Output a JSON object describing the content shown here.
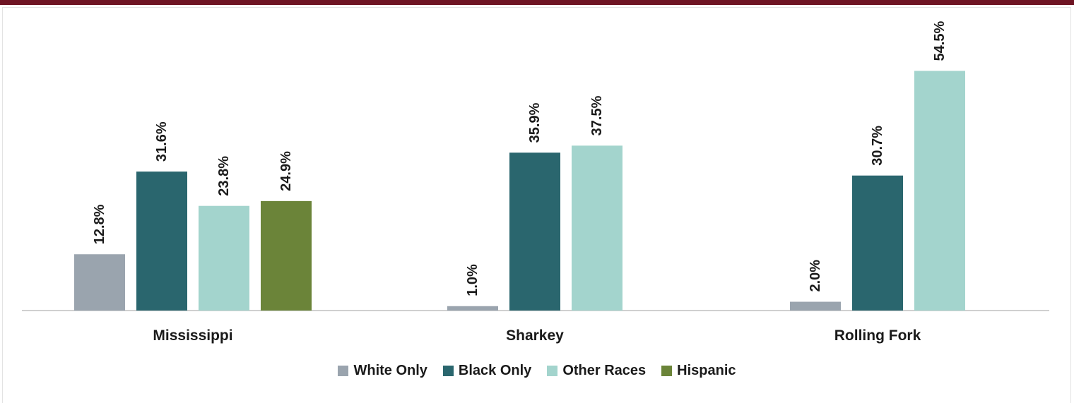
{
  "chart_data": {
    "type": "bar",
    "categories": [
      "Mississippi",
      "Sharkey",
      "Rolling Fork"
    ],
    "series": [
      {
        "name": "White Only",
        "color": "#9aa4ae",
        "values": [
          12.8,
          1.0,
          2.0
        ]
      },
      {
        "name": "Black Only",
        "color": "#2a666e",
        "values": [
          31.6,
          35.9,
          30.7
        ]
      },
      {
        "name": "Other Races",
        "color": "#a3d4cd",
        "values": [
          23.8,
          37.5,
          54.5
        ]
      },
      {
        "name": "Hispanic",
        "color": "#6b8439",
        "values": [
          24.9,
          null,
          null
        ]
      }
    ],
    "data_labels": [
      [
        "12.8%",
        "31.6%",
        "23.8%",
        "24.9%"
      ],
      [
        "1.0%",
        "35.9%",
        "37.5%"
      ],
      [
        "2.0%",
        "30.7%",
        "54.5%"
      ]
    ],
    "ylim": [
      0,
      65
    ],
    "grid": false,
    "legend_position": "bottom"
  },
  "colors": {
    "header_bar": "#6e1423",
    "axis": "#d0d0d0"
  }
}
